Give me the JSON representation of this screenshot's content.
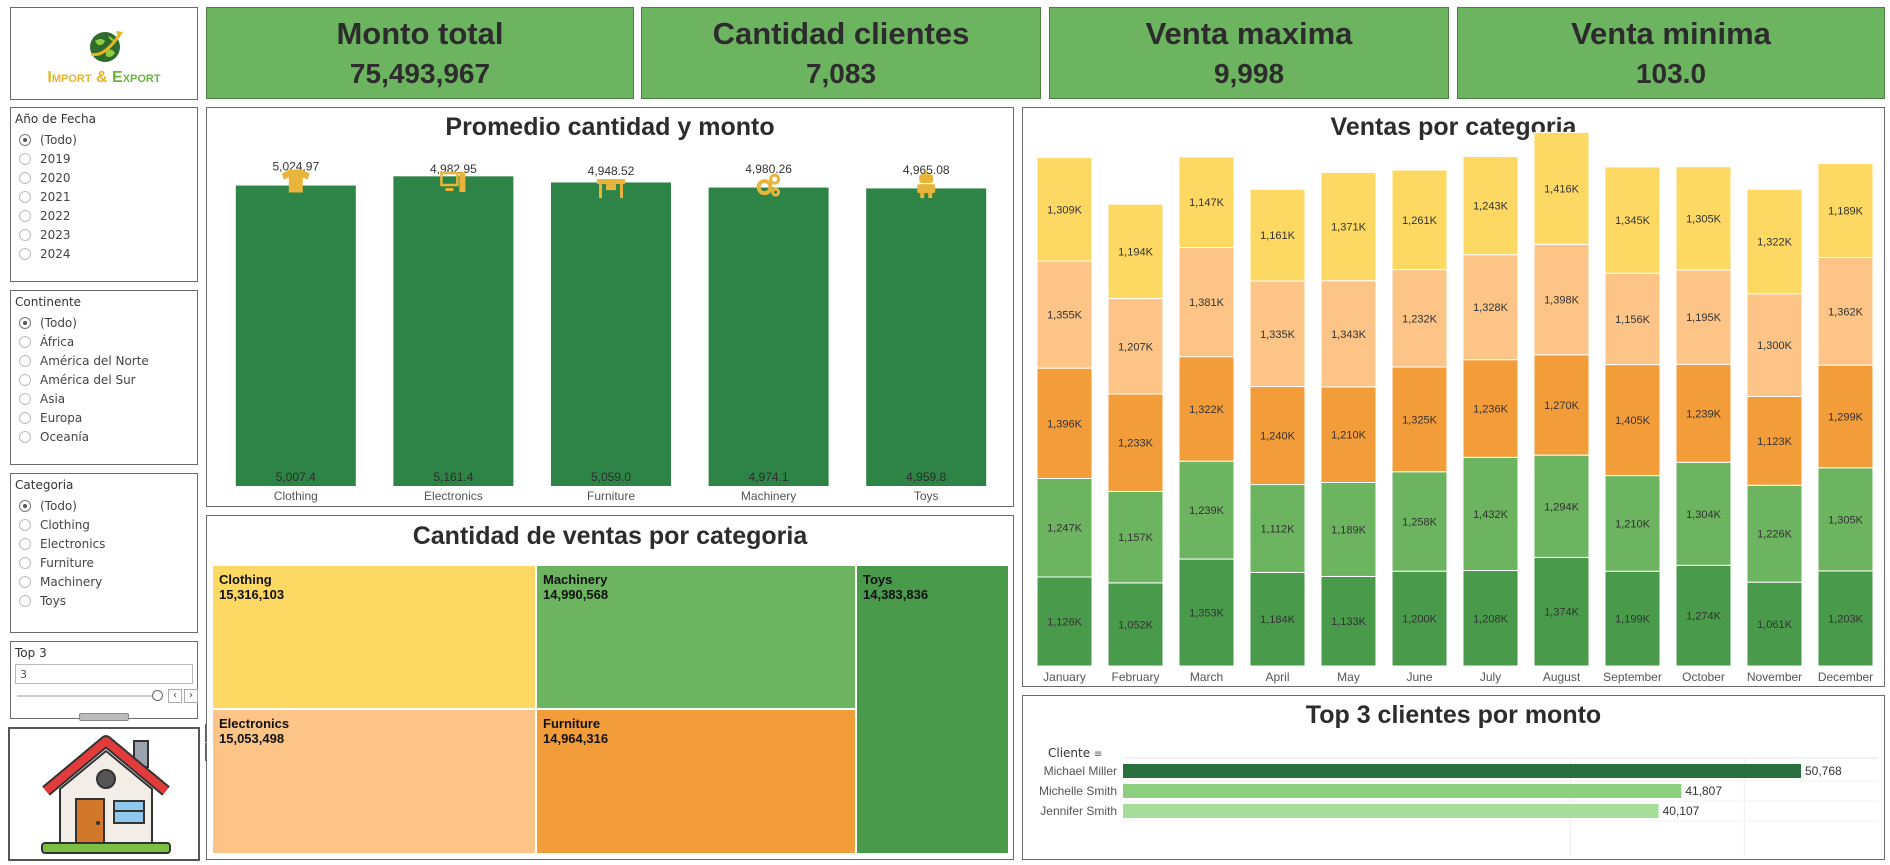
{
  "logo": {
    "line1": "Import",
    "amp": "&",
    "line2": "Export"
  },
  "kpis": [
    {
      "title": "Monto total",
      "value": "75,493,967"
    },
    {
      "title": "Cantidad clientes",
      "value": "7,083"
    },
    {
      "title": "Venta maxima",
      "value": "9,998"
    },
    {
      "title": "Venta minima",
      "value": "103.0"
    }
  ],
  "filters": {
    "year": {
      "title": "Año de Fecha",
      "options": [
        "(Todo)",
        "2019",
        "2020",
        "2021",
        "2022",
        "2023",
        "2024"
      ],
      "selected": 0
    },
    "continent": {
      "title": "Continente",
      "options": [
        "(Todo)",
        "África",
        "América del Norte",
        "América del Sur",
        "Asia",
        "Europa",
        "Oceanía"
      ],
      "selected": 0
    },
    "category": {
      "title": "Categoria",
      "options": [
        "(Todo)",
        "Clothing",
        "Electronics",
        "Furniture",
        "Machinery",
        "Toys"
      ],
      "selected": 0
    },
    "top": {
      "title": "Top 3",
      "value": "3",
      "slider_value": 3
    }
  },
  "colors": {
    "dark_green": "#2e8447",
    "green": "#6cb45f",
    "mid_green": "#4a9a4c",
    "yellow": "#fdd963",
    "light_orange": "#fdc487",
    "orange": "#f39c3a",
    "icon": "#e8b53a"
  },
  "promedio": {
    "title": "Promedio cantidad y monto",
    "chart_data": {
      "type": "bar",
      "categories": [
        "Clothing",
        "Electronics",
        "Furniture",
        "Machinery",
        "Toys"
      ],
      "series": [
        {
          "values": [
            5007.4,
            5161.4,
            5059.0,
            4974.1,
            4959.8
          ],
          "labels": [
            "5,007.4",
            "5,161.4",
            "5,059.0",
            "4,974.1",
            "4,959.8"
          ]
        },
        {
          "values": [
            5024.97,
            4982.95,
            4948.52,
            4980.26,
            4965.08
          ],
          "labels": [
            "5,024.97",
            "4,982.95",
            "4,948.52",
            "4,980.26",
            "4,965.08"
          ]
        }
      ],
      "icons": [
        "shirt-icon",
        "computer-icon",
        "desk-icon",
        "gears-icon",
        "toy-robot-icon"
      ]
    }
  },
  "treemap": {
    "title": "Cantidad de ventas por categoria",
    "chart_data": {
      "type": "treemap",
      "items": [
        {
          "name": "Clothing",
          "value": "15,316,103",
          "color": "#fdd963"
        },
        {
          "name": "Machinery",
          "value": "14,990,568",
          "color": "#6cb45f"
        },
        {
          "name": "Toys",
          "value": "14,383,836",
          "color": "#4a9a4c"
        },
        {
          "name": "Electronics",
          "value": "15,053,498",
          "color": "#fdc487"
        },
        {
          "name": "Furniture",
          "value": "14,964,316",
          "color": "#f39c3a"
        }
      ]
    }
  },
  "ventas": {
    "title": "Ventas por categoria",
    "chart_data": {
      "type": "bar",
      "stacked": true,
      "categories": [
        "January",
        "February",
        "March",
        "April",
        "May",
        "June",
        "July",
        "August",
        "September",
        "October",
        "November",
        "December"
      ],
      "series": [
        {
          "color": "#4a9a4c",
          "values": [
            1126,
            1052,
            1353,
            1184,
            1133,
            1200,
            1208,
            1374,
            1199,
            1274,
            1061,
            1203
          ]
        },
        {
          "color": "#6cb45f",
          "values": [
            1247,
            1157,
            1239,
            1112,
            1189,
            1258,
            1432,
            1294,
            1210,
            1304,
            1226,
            1305
          ]
        },
        {
          "color": "#f39c3a",
          "values": [
            1396,
            1233,
            1322,
            1240,
            1210,
            1325,
            1236,
            1270,
            1405,
            1239,
            1123,
            1299
          ]
        },
        {
          "color": "#fdc487",
          "values": [
            1355,
            1207,
            1381,
            1335,
            1343,
            1232,
            1328,
            1398,
            1156,
            1195,
            1300,
            1362
          ]
        },
        {
          "color": "#fdd963",
          "values": [
            1309,
            1194,
            1147,
            1161,
            1371,
            1261,
            1243,
            1416,
            1345,
            1305,
            1322,
            1189
          ]
        }
      ],
      "value_suffix": "K"
    }
  },
  "top3": {
    "title": "Top 3 clientes por monto",
    "column_header": "Cliente",
    "chart_data": {
      "type": "bar",
      "orientation": "horizontal",
      "categories": [
        "Michael Miller",
        "Michelle Smith",
        "Jennifer Smith"
      ],
      "values": [
        50768,
        41807,
        40107
      ],
      "labels": [
        "50,768",
        "41,807",
        "40,107"
      ],
      "colors": [
        "#2a6f3e",
        "#8ccf7e",
        "#a8dc99"
      ]
    }
  }
}
